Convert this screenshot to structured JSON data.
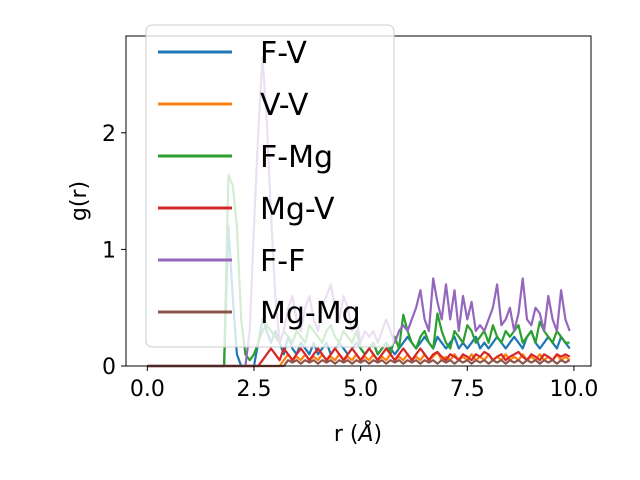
{
  "chart_data": {
    "type": "line",
    "title": "",
    "xlabel": "r (",
    "xlabel_unit": "Å",
    "xlabel_close": ")",
    "ylabel": "g(r)",
    "xlim": [
      -0.5,
      10.4
    ],
    "ylim": [
      0,
      2.83
    ],
    "x_ticks": [
      0.0,
      2.5,
      5.0,
      7.5,
      10.0
    ],
    "x_tick_labels": [
      "0.0",
      "2.5",
      "5.0",
      "7.5",
      "10.0"
    ],
    "y_ticks": [
      0,
      1,
      2
    ],
    "y_tick_labels": [
      "0",
      "1",
      "2"
    ],
    "grid": false,
    "legend_position": "upper-left",
    "x": [
      0.0,
      0.1,
      0.2,
      0.3,
      0.4,
      0.5,
      0.6,
      0.7,
      0.8,
      0.9,
      1.0,
      1.1,
      1.2,
      1.3,
      1.4,
      1.5,
      1.6,
      1.7,
      1.8,
      1.9,
      2.0,
      2.1,
      2.2,
      2.3,
      2.4,
      2.5,
      2.6,
      2.7,
      2.8,
      2.9,
      3.0,
      3.1,
      3.2,
      3.3,
      3.4,
      3.5,
      3.6,
      3.7,
      3.8,
      3.9,
      4.0,
      4.1,
      4.2,
      4.3,
      4.4,
      4.5,
      4.6,
      4.7,
      4.8,
      4.9,
      5.0,
      5.1,
      5.2,
      5.3,
      5.4,
      5.5,
      5.6,
      5.7,
      5.8,
      5.9,
      6.0,
      6.1,
      6.2,
      6.3,
      6.4,
      6.5,
      6.6,
      6.7,
      6.8,
      6.9,
      7.0,
      7.1,
      7.2,
      7.3,
      7.4,
      7.5,
      7.6,
      7.7,
      7.8,
      7.9,
      8.0,
      8.1,
      8.2,
      8.3,
      8.4,
      8.5,
      8.6,
      8.7,
      8.8,
      8.9,
      9.0,
      9.1,
      9.2,
      9.3,
      9.4,
      9.5,
      9.6,
      9.7,
      9.8,
      9.9
    ],
    "series": [
      {
        "name": "F-V",
        "color": "#1f77b4",
        "values": [
          0,
          0,
          0,
          0,
          0,
          0,
          0,
          0,
          0,
          0,
          0,
          0,
          0,
          0,
          0,
          0,
          0,
          0,
          0,
          1.2,
          0.6,
          0.1,
          0,
          0,
          0,
          0,
          0.2,
          0.4,
          0.3,
          0.2,
          0.3,
          0.2,
          0.1,
          0.25,
          0.15,
          0.1,
          0.2,
          0.15,
          0.1,
          0.2,
          0.1,
          0.15,
          0.2,
          0.1,
          0.15,
          0.2,
          0.15,
          0.1,
          0.15,
          0.2,
          0.15,
          0.1,
          0.15,
          0.2,
          0.1,
          0.15,
          0.2,
          0.15,
          0.1,
          0.15,
          0.2,
          0.25,
          0.2,
          0.15,
          0.2,
          0.25,
          0.2,
          0.15,
          0.25,
          0.2,
          0.15,
          0.2,
          0.25,
          0.15,
          0.2,
          0.15,
          0.2,
          0.25,
          0.15,
          0.2,
          0.15,
          0.2,
          0.25,
          0.2,
          0.15,
          0.2,
          0.25,
          0.2,
          0.15,
          0.25,
          0.3,
          0.2,
          0.15,
          0.2,
          0.25,
          0.2,
          0.15,
          0.25,
          0.2,
          0.15
        ]
      },
      {
        "name": "V-V",
        "color": "#ff7f0e",
        "values": [
          0,
          0,
          0,
          0,
          0,
          0,
          0,
          0,
          0,
          0,
          0,
          0,
          0,
          0,
          0,
          0,
          0,
          0,
          0,
          0,
          0,
          0,
          0,
          0,
          0,
          0,
          0,
          0,
          0,
          0,
          0,
          0,
          0.05,
          0.1,
          0.05,
          0.08,
          0.05,
          0.1,
          0.05,
          0.08,
          0.05,
          0.1,
          0.05,
          0.08,
          0.05,
          0.1,
          0.05,
          0.08,
          0.05,
          0.1,
          0.05,
          0.08,
          0.05,
          0.1,
          0.05,
          0.08,
          0.05,
          0.1,
          0.05,
          0.08,
          0.05,
          0.1,
          0.05,
          0.08,
          0.05,
          0.1,
          0.05,
          0.08,
          0.12,
          0.05,
          0.08,
          0.05,
          0.1,
          0.05,
          0.08,
          0.05,
          0.1,
          0.05,
          0.08,
          0.05,
          0.1,
          0.05,
          0.08,
          0.05,
          0.1,
          0.05,
          0.08,
          0.05,
          0.1,
          0.05,
          0.08,
          0.05,
          0.1,
          0.05,
          0.08,
          0.05,
          0.1,
          0.05,
          0.08,
          0.05
        ]
      },
      {
        "name": "F-Mg",
        "color": "#2ca02c",
        "values": [
          0,
          0,
          0,
          0,
          0,
          0,
          0,
          0,
          0,
          0,
          0,
          0,
          0,
          0,
          0,
          0,
          0,
          0,
          0,
          1.64,
          1.55,
          1.2,
          0.4,
          0.1,
          0.05,
          0.1,
          0.2,
          0.3,
          0.35,
          0.3,
          0.25,
          0.2,
          0.3,
          0.25,
          0.2,
          0.3,
          0.25,
          0.2,
          0.35,
          0.3,
          0.25,
          0.2,
          0.3,
          0.35,
          0.25,
          0.2,
          0.3,
          0.25,
          0.2,
          0.3,
          0.15,
          0.1,
          0.15,
          0.2,
          0.1,
          0.15,
          0.2,
          0.1,
          0.25,
          0.15,
          0.44,
          0.3,
          0.2,
          0.15,
          0.25,
          0.3,
          0.2,
          0.15,
          0.45,
          0.3,
          0.2,
          0.15,
          0.3,
          0.25,
          0.2,
          0.35,
          0.3,
          0.2,
          0.25,
          0.3,
          0.2,
          0.35,
          0.25,
          0.2,
          0.3,
          0.25,
          0.3,
          0.35,
          0.2,
          0.25,
          0.3,
          0.2,
          0.38,
          0.3,
          0.25,
          0.2,
          0.3,
          0.25,
          0.2,
          0.2
        ]
      },
      {
        "name": "Mg-V",
        "color": "#d62728",
        "values": [
          0,
          0,
          0,
          0,
          0,
          0,
          0,
          0,
          0,
          0,
          0,
          0,
          0,
          0,
          0,
          0,
          0,
          0,
          0,
          0,
          0,
          0,
          0,
          0,
          0,
          0,
          0,
          0.05,
          0.1,
          0.15,
          0.1,
          0.05,
          0.15,
          0.1,
          0.05,
          0.1,
          0.15,
          0.1,
          0.05,
          0.1,
          0.15,
          0.1,
          0.05,
          0.1,
          0.15,
          0.1,
          0.05,
          0.1,
          0.15,
          0.1,
          0.05,
          0.1,
          0.15,
          0.1,
          0.05,
          0.1,
          0.15,
          0.1,
          0.05,
          0.1,
          0.15,
          0.1,
          0.05,
          0.1,
          0.15,
          0.1,
          0.05,
          0.1,
          0.12,
          0.08,
          0.05,
          0.1,
          0.08,
          0.05,
          0.1,
          0.08,
          0.05,
          0.1,
          0.08,
          0.12,
          0.1,
          0.05,
          0.08,
          0.1,
          0.05,
          0.08,
          0.1,
          0.12,
          0.08,
          0.05,
          0.1,
          0.08,
          0.05,
          0.1,
          0.08,
          0.05,
          0.1,
          0.08,
          0.1,
          0.08
        ]
      },
      {
        "name": "F-F",
        "color": "#9467bd",
        "values": [
          0,
          0,
          0,
          0,
          0,
          0,
          0,
          0,
          0,
          0,
          0,
          0,
          0,
          0,
          0,
          0,
          0,
          0,
          0,
          0,
          0,
          0,
          0,
          0,
          0.3,
          1.2,
          2.0,
          2.65,
          2.1,
          1.3,
          0.6,
          0.2,
          0.3,
          0.5,
          0.6,
          0.4,
          0.3,
          0.5,
          0.6,
          0.4,
          0.3,
          0.5,
          0.6,
          0.7,
          0.5,
          0.4,
          0.6,
          0.5,
          0.3,
          0.4,
          0.2,
          0.3,
          0.25,
          0.3,
          0.2,
          0.3,
          0.4,
          0.3,
          0.2,
          0.3,
          0.35,
          0.3,
          0.4,
          0.5,
          0.65,
          0.4,
          0.3,
          0.75,
          0.55,
          0.4,
          0.7,
          0.4,
          0.65,
          0.3,
          0.6,
          0.4,
          0.55,
          0.3,
          0.35,
          0.3,
          0.4,
          0.5,
          0.7,
          0.35,
          0.4,
          0.5,
          0.3,
          0.45,
          0.75,
          0.4,
          0.35,
          0.5,
          0.45,
          0.3,
          0.6,
          0.4,
          0.3,
          0.65,
          0.4,
          0.3
        ]
      },
      {
        "name": "Mg-Mg",
        "color": "#8c564b",
        "values": [
          0,
          0,
          0,
          0,
          0,
          0,
          0,
          0,
          0,
          0,
          0,
          0,
          0,
          0,
          0,
          0,
          0,
          0,
          0,
          0,
          0,
          0,
          0,
          0,
          0,
          0,
          0,
          0,
          0,
          0,
          0,
          0,
          0,
          0.05,
          0.03,
          0.05,
          0.02,
          0.05,
          0.03,
          0.05,
          0.02,
          0.05,
          0.03,
          0.05,
          0.02,
          0.05,
          0.03,
          0.05,
          0.02,
          0.05,
          0.03,
          0.05,
          0.02,
          0.05,
          0.03,
          0.05,
          0.02,
          0.05,
          0.03,
          0.05,
          0.02,
          0.05,
          0.03,
          0.05,
          0.02,
          0.05,
          0.03,
          0.05,
          0.02,
          0.05,
          0.03,
          0.05,
          0.02,
          0.05,
          0.03,
          0.05,
          0.02,
          0.05,
          0.03,
          0.05,
          0.02,
          0.05,
          0.03,
          0.05,
          0.02,
          0.05,
          0.03,
          0.05,
          0.02,
          0.05,
          0.03,
          0.05,
          0.02,
          0.05,
          0.03,
          0.05,
          0.02,
          0.05,
          0.03,
          0.05
        ]
      }
    ]
  }
}
